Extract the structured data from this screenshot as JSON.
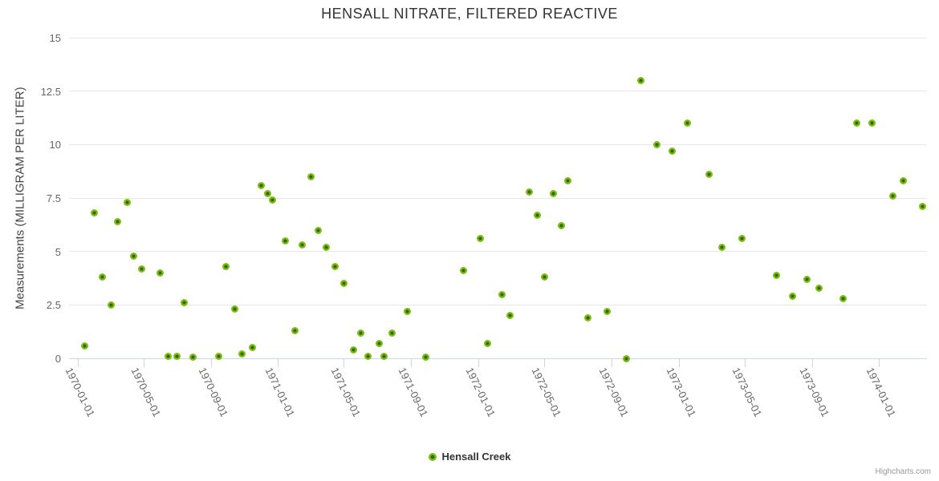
{
  "chart": {
    "title": "HENSALL NITRATE, FILTERED REACTIVE",
    "credits": "Highcharts.com"
  },
  "legend": {
    "label": "Hensall Creek"
  },
  "chart_data": {
    "type": "scatter",
    "title": "HENSALL NITRATE, FILTERED REACTIVE",
    "xlabel": "",
    "ylabel": "Measurements (MILLIGRAM PER LITER)",
    "ylim": [
      0,
      15
    ],
    "yticks": [
      0,
      2.5,
      5,
      7.5,
      10,
      12.5,
      15
    ],
    "xticks": [
      "1970-01-01",
      "1970-05-01",
      "1970-09-01",
      "1971-01-01",
      "1971-05-01",
      "1971-09-01",
      "1972-01-01",
      "1972-05-01",
      "1972-09-01",
      "1973-01-01",
      "1973-05-01",
      "1973-09-01",
      "1974-01-01"
    ],
    "grid": "horizontal-only",
    "legend_position": "bottom-center",
    "marker_color": "#7fbe11",
    "marker_core_color": "#2d6909",
    "axis_color": "#ccd6eb",
    "gridline_color": "#e6e6e6",
    "series": [
      {
        "name": "Hensall Creek",
        "points": [
          {
            "x": "1970-01-14",
            "y": 0.6
          },
          {
            "x": "1970-02-01",
            "y": 6.8
          },
          {
            "x": "1970-02-15",
            "y": 3.8
          },
          {
            "x": "1970-03-03",
            "y": 2.5
          },
          {
            "x": "1970-03-15",
            "y": 6.4
          },
          {
            "x": "1970-04-01",
            "y": 7.3
          },
          {
            "x": "1970-04-13",
            "y": 4.8
          },
          {
            "x": "1970-04-28",
            "y": 4.2
          },
          {
            "x": "1970-06-01",
            "y": 4.0
          },
          {
            "x": "1970-06-15",
            "y": 0.1
          },
          {
            "x": "1970-07-01",
            "y": 0.1
          },
          {
            "x": "1970-07-14",
            "y": 2.6
          },
          {
            "x": "1970-07-30",
            "y": 0.05
          },
          {
            "x": "1970-09-15",
            "y": 0.1
          },
          {
            "x": "1970-09-29",
            "y": 4.3
          },
          {
            "x": "1970-10-14",
            "y": 2.3
          },
          {
            "x": "1970-10-28",
            "y": 0.2
          },
          {
            "x": "1970-11-16",
            "y": 0.5
          },
          {
            "x": "1970-12-02",
            "y": 8.1
          },
          {
            "x": "1970-12-14",
            "y": 7.7
          },
          {
            "x": "1970-12-23",
            "y": 7.4
          },
          {
            "x": "1971-01-14",
            "y": 5.5
          },
          {
            "x": "1971-02-01",
            "y": 1.3
          },
          {
            "x": "1971-02-15",
            "y": 5.3
          },
          {
            "x": "1971-03-02",
            "y": 8.5
          },
          {
            "x": "1971-03-15",
            "y": 6.0
          },
          {
            "x": "1971-03-31",
            "y": 5.2
          },
          {
            "x": "1971-04-15",
            "y": 4.3
          },
          {
            "x": "1971-05-01",
            "y": 3.5
          },
          {
            "x": "1971-05-19",
            "y": 0.4
          },
          {
            "x": "1971-06-01",
            "y": 1.2
          },
          {
            "x": "1971-06-14",
            "y": 0.1
          },
          {
            "x": "1971-07-05",
            "y": 0.7
          },
          {
            "x": "1971-07-13",
            "y": 0.1
          },
          {
            "x": "1971-07-28",
            "y": 1.2
          },
          {
            "x": "1971-08-25",
            "y": 2.2
          },
          {
            "x": "1971-09-28",
            "y": 0.05
          },
          {
            "x": "1971-12-06",
            "y": 4.1
          },
          {
            "x": "1972-01-05",
            "y": 5.6
          },
          {
            "x": "1972-01-18",
            "y": 0.7
          },
          {
            "x": "1972-02-14",
            "y": 3.0
          },
          {
            "x": "1972-02-28",
            "y": 2.0
          },
          {
            "x": "1972-04-04",
            "y": 7.8
          },
          {
            "x": "1972-04-18",
            "y": 6.7
          },
          {
            "x": "1972-05-01",
            "y": 3.8
          },
          {
            "x": "1972-05-17",
            "y": 7.7
          },
          {
            "x": "1972-06-01",
            "y": 6.2
          },
          {
            "x": "1972-06-13",
            "y": 8.3
          },
          {
            "x": "1972-07-19",
            "y": 1.9
          },
          {
            "x": "1972-08-23",
            "y": 2.2
          },
          {
            "x": "1972-09-28",
            "y": 0.0
          },
          {
            "x": "1972-10-24",
            "y": 13.0
          },
          {
            "x": "1972-11-22",
            "y": 10.0
          },
          {
            "x": "1972-12-20",
            "y": 9.7
          },
          {
            "x": "1973-01-17",
            "y": 11.0
          },
          {
            "x": "1973-02-26",
            "y": 8.6
          },
          {
            "x": "1973-03-21",
            "y": 5.2
          },
          {
            "x": "1973-04-26",
            "y": 5.6
          },
          {
            "x": "1973-06-28",
            "y": 3.9
          },
          {
            "x": "1973-07-27",
            "y": 2.9
          },
          {
            "x": "1973-08-23",
            "y": 3.7
          },
          {
            "x": "1973-09-14",
            "y": 3.3
          },
          {
            "x": "1973-10-27",
            "y": 2.8
          },
          {
            "x": "1973-11-21",
            "y": 11.0
          },
          {
            "x": "1973-12-20",
            "y": 11.0
          },
          {
            "x": "1974-01-26",
            "y": 7.6
          },
          {
            "x": "1974-02-15",
            "y": 8.3
          },
          {
            "x": "1974-03-22",
            "y": 7.1
          }
        ]
      }
    ]
  }
}
